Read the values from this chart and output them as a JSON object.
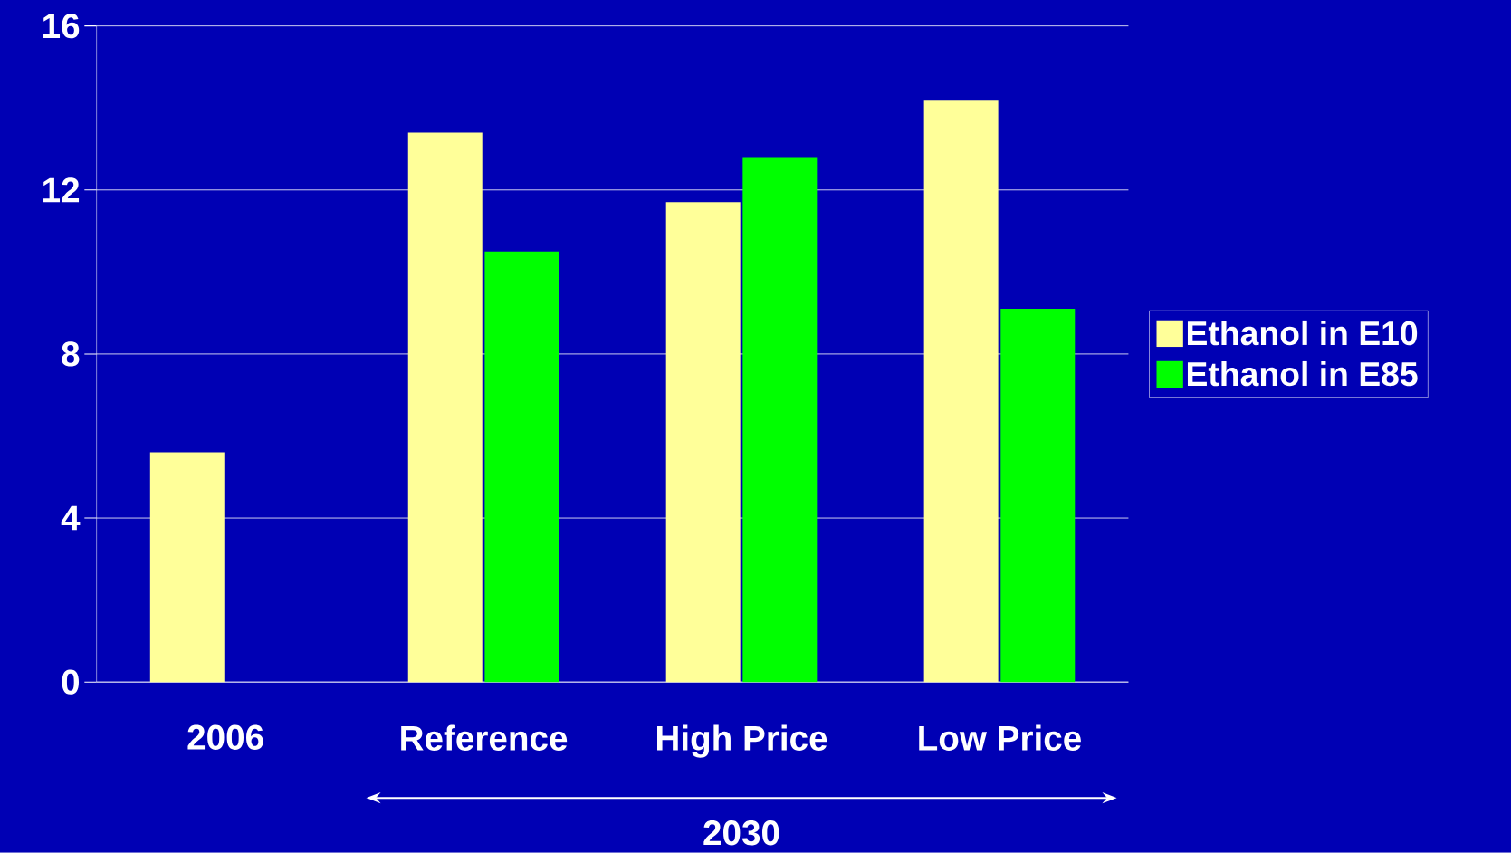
{
  "chart_data": {
    "type": "bar",
    "categories": [
      "2006",
      "Reference",
      "High Price",
      "Low Price"
    ],
    "series": [
      {
        "name": "Ethanol in E10",
        "color": "#ffff99",
        "values": [
          5.6,
          13.4,
          11.7,
          14.2
        ]
      },
      {
        "name": "Ethanol in E85",
        "color": "#00ff00",
        "values": [
          null,
          10.5,
          12.8,
          9.1
        ]
      }
    ],
    "ylim": [
      0,
      16
    ],
    "yticks": [
      0,
      4,
      8,
      12,
      16
    ],
    "grid": "y",
    "legend": "right",
    "annotations": [
      "2030"
    ]
  }
}
